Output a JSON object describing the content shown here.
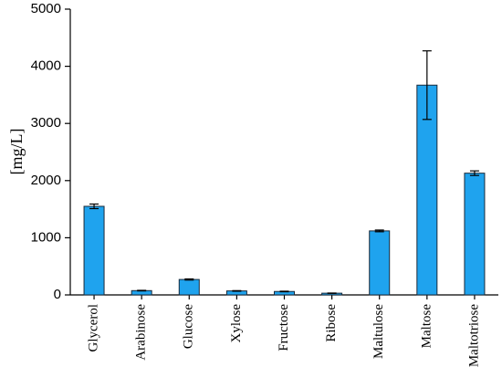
{
  "chart_data": {
    "type": "bar",
    "ylabel": "[mg/L]",
    "categories": [
      "Glycerol",
      "Arabinose",
      "Glucose",
      "Xylose",
      "Fructose",
      "Ribose",
      "Maltulose",
      "Maltose",
      "Maltotriose"
    ],
    "values": [
      1550,
      75,
      270,
      70,
      60,
      30,
      1120,
      3670,
      2130
    ],
    "errors": [
      40,
      5,
      10,
      5,
      5,
      3,
      15,
      600,
      40
    ],
    "color": "#1fa3ee",
    "ylim": [
      0,
      5000
    ],
    "yticks": [
      0,
      1000,
      2000,
      3000,
      4000,
      5000
    ],
    "grid": false
  }
}
